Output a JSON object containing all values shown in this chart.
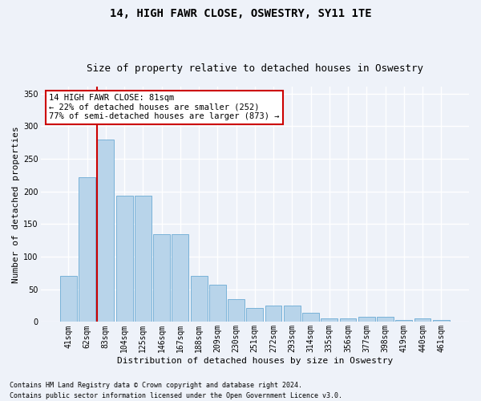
{
  "title": "14, HIGH FAWR CLOSE, OSWESTRY, SY11 1TE",
  "subtitle": "Size of property relative to detached houses in Oswestry",
  "xlabel": "Distribution of detached houses by size in Oswestry",
  "ylabel": "Number of detached properties",
  "footer_line1": "Contains HM Land Registry data © Crown copyright and database right 2024.",
  "footer_line2": "Contains public sector information licensed under the Open Government Licence v3.0.",
  "categories": [
    "41sqm",
    "62sqm",
    "83sqm",
    "104sqm",
    "125sqm",
    "146sqm",
    "167sqm",
    "188sqm",
    "209sqm",
    "230sqm",
    "251sqm",
    "272sqm",
    "293sqm",
    "314sqm",
    "335sqm",
    "356sqm",
    "377sqm",
    "398sqm",
    "419sqm",
    "440sqm",
    "461sqm"
  ],
  "bar_values": [
    70,
    222,
    280,
    193,
    193,
    134,
    134,
    70,
    57,
    35,
    22,
    25,
    25,
    14,
    5,
    5,
    8,
    8,
    3,
    6,
    3
  ],
  "bar_color": "#b8d4ea",
  "bar_edge_color": "#6aaad4",
  "vline_color": "#cc0000",
  "annotation_text": "14 HIGH FAWR CLOSE: 81sqm\n← 22% of detached houses are smaller (252)\n77% of semi-detached houses are larger (873) →",
  "annotation_box_color": "#ffffff",
  "annotation_box_edge": "#cc0000",
  "ylim": [
    0,
    360
  ],
  "yticks": [
    0,
    50,
    100,
    150,
    200,
    250,
    300,
    350
  ],
  "bg_color": "#eef2f9",
  "grid_color": "#ffffff",
  "title_fontsize": 10,
  "subtitle_fontsize": 9,
  "axis_label_fontsize": 8,
  "tick_fontsize": 7,
  "footer_fontsize": 6
}
